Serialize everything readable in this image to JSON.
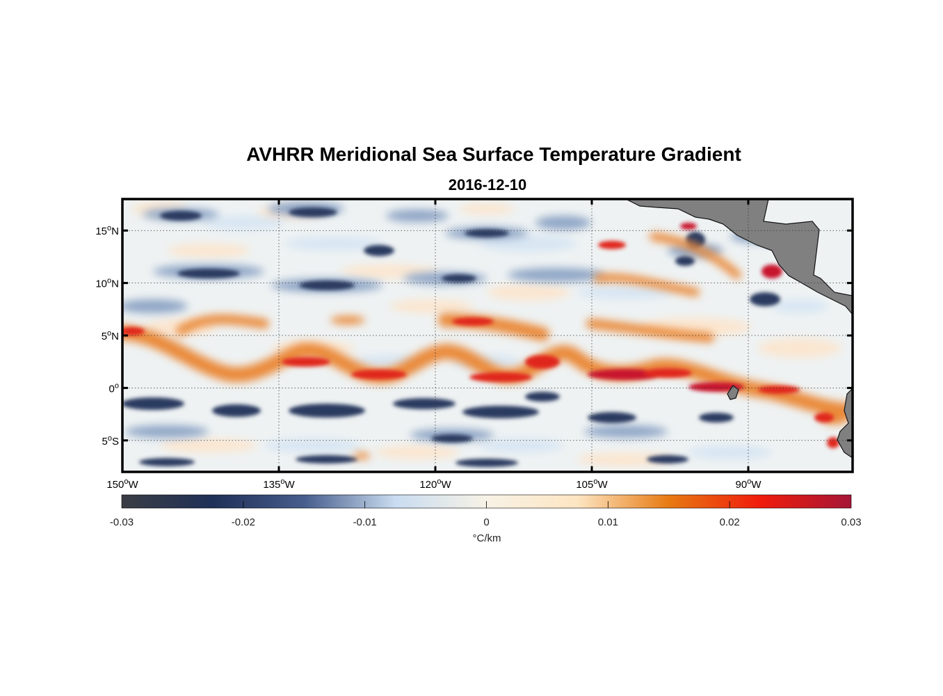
{
  "title": "AVHRR Meridional Sea Surface Temperature Gradient",
  "subtitle": "2016-12-10",
  "map": {
    "lon_range": [
      -150,
      -80
    ],
    "lat_range": [
      -8,
      18
    ],
    "lon_ticks": [
      {
        "value": -150,
        "deg": "150",
        "hemi": "W"
      },
      {
        "value": -135,
        "deg": "135",
        "hemi": "W"
      },
      {
        "value": -120,
        "deg": "120",
        "hemi": "W"
      },
      {
        "value": -105,
        "deg": "105",
        "hemi": "W"
      },
      {
        "value": -90,
        "deg": "90",
        "hemi": "W"
      }
    ],
    "lat_ticks": [
      {
        "value": 15,
        "deg": "15",
        "hemi": "N"
      },
      {
        "value": 10,
        "deg": "10",
        "hemi": "N"
      },
      {
        "value": 5,
        "deg": "5",
        "hemi": "N"
      },
      {
        "value": 0,
        "deg": "0",
        "hemi": ""
      },
      {
        "value": -5,
        "deg": "5",
        "hemi": "S"
      }
    ],
    "land_color": "#808080",
    "grid": true
  },
  "colorbar": {
    "min": -0.03,
    "max": 0.03,
    "ticks": [
      "-0.03",
      "-0.02",
      "-0.01",
      "0",
      "0.01",
      "0.02",
      "0.03"
    ],
    "unit_label": "°C/km",
    "stops": [
      "#3a3d44",
      "#1f3058",
      "#475d8c",
      "#c9dcf0",
      "#f7f2e6",
      "#fde5c2",
      "#e77a12",
      "#f01c0c",
      "#a51636"
    ]
  }
}
